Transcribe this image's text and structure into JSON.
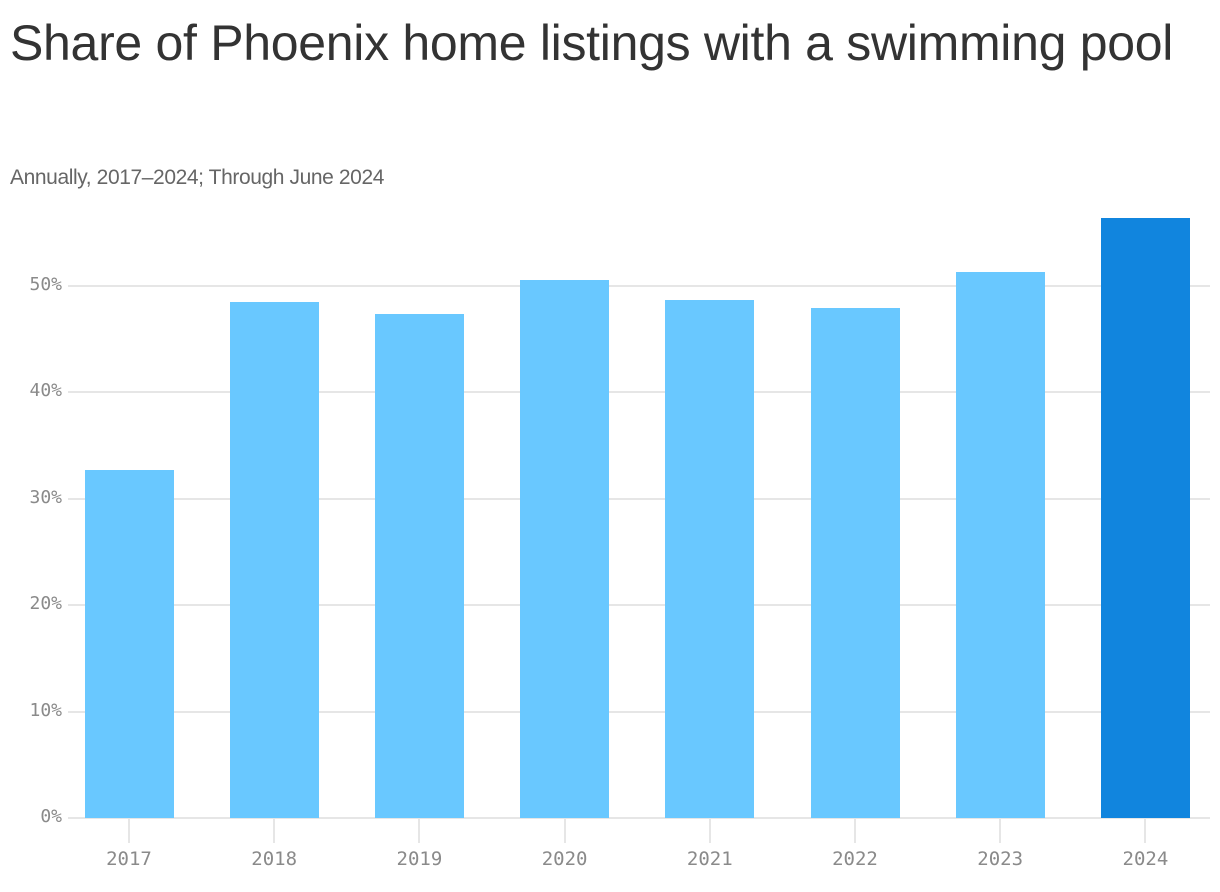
{
  "header": {
    "title": "Share of Phoenix home listings with a swimming pool",
    "subtitle": "Annually, 2017–2024; Through June 2024"
  },
  "colors": {
    "bar_default": "#69c8ff",
    "bar_highlight": "#1185de",
    "gridline": "#e6e6e6",
    "axis_text": "#8a8a8a",
    "title_text": "#333333",
    "subtitle_text": "#666666"
  },
  "axis": {
    "y_ticks": [
      "0%",
      "10%",
      "20%",
      "30%",
      "40%",
      "50%"
    ],
    "x_ticks": [
      "2017",
      "2018",
      "2019",
      "2020",
      "2021",
      "2022",
      "2023",
      "2024"
    ]
  },
  "chart_data": {
    "type": "bar",
    "title": "Share of Phoenix home listings with a swimming pool",
    "subtitle": "Annually, 2017–2024; Through June 2024",
    "xlabel": "",
    "ylabel": "",
    "categories": [
      "2017",
      "2018",
      "2019",
      "2020",
      "2021",
      "2022",
      "2023",
      "2024"
    ],
    "values": [
      32.7,
      48.5,
      47.4,
      50.6,
      48.7,
      47.9,
      51.3,
      56.4
    ],
    "unit": "%",
    "ylim": [
      0,
      56.4
    ],
    "y_ticks": [
      0,
      10,
      20,
      30,
      40,
      50
    ],
    "grid": true,
    "legend": null,
    "highlight": {
      "category": "2024",
      "color": "#1185de"
    },
    "default_color": "#69c8ff"
  }
}
